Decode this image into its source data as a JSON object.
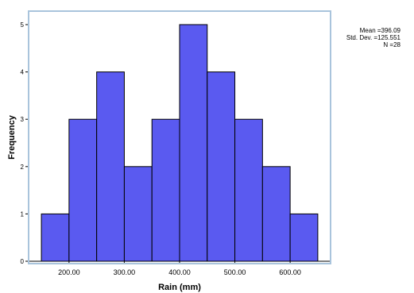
{
  "chart_data": {
    "type": "bar",
    "subtype": "histogram",
    "xlabel": "Rain (mm)",
    "ylabel": "Frequency",
    "bins": [
      {
        "start": 150,
        "end": 200,
        "count": 1
      },
      {
        "start": 200,
        "end": 250,
        "count": 3
      },
      {
        "start": 250,
        "end": 300,
        "count": 4
      },
      {
        "start": 300,
        "end": 350,
        "count": 2
      },
      {
        "start": 350,
        "end": 400,
        "count": 3
      },
      {
        "start": 400,
        "end": 450,
        "count": 5
      },
      {
        "start": 450,
        "end": 500,
        "count": 4
      },
      {
        "start": 500,
        "end": 550,
        "count": 3
      },
      {
        "start": 550,
        "end": 600,
        "count": 2
      },
      {
        "start": 600,
        "end": 650,
        "count": 1
      }
    ],
    "x_ticks": [
      {
        "value": 200,
        "label": "200.00"
      },
      {
        "value": 300,
        "label": "300.00"
      },
      {
        "value": 400,
        "label": "400.00"
      },
      {
        "value": 500,
        "label": "500.00"
      },
      {
        "value": 600,
        "label": "600.00"
      }
    ],
    "y_ticks": [
      {
        "value": 0,
        "label": "0"
      },
      {
        "value": 1,
        "label": "1"
      },
      {
        "value": 2,
        "label": "2"
      },
      {
        "value": 3,
        "label": "3"
      },
      {
        "value": 4,
        "label": "4"
      },
      {
        "value": 5,
        "label": "5"
      }
    ],
    "xlim": [
      126.88,
      673.12
    ],
    "ylim": [
      0,
      5
    ],
    "grid": false,
    "colors": {
      "bar_fill": "#5a5af0",
      "bar_edge": "#000000",
      "plot_border": "#a9c4dc"
    }
  },
  "stats": {
    "mean": "Mean =396.09",
    "std_dev": "Std. Dev. =125.551",
    "n": "N =28"
  }
}
